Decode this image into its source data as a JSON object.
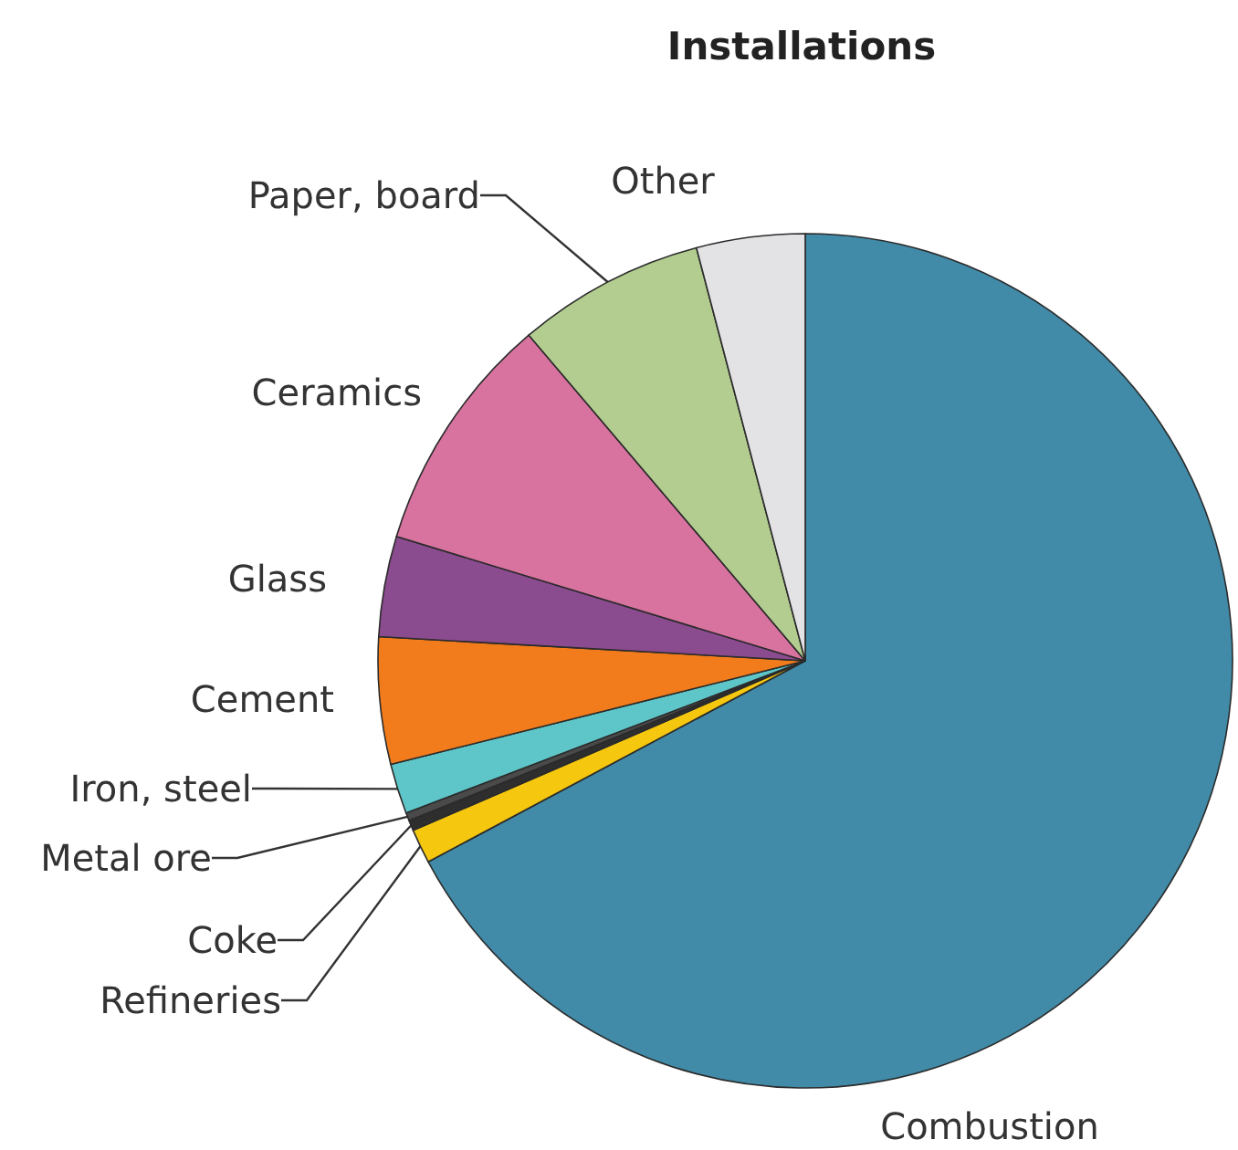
{
  "chart_data": {
    "type": "pie",
    "title": "Installations",
    "categories": [
      "Combustion",
      "Refineries",
      "Coke",
      "Metal ore",
      "Iron, steel",
      "Cement",
      "Glass",
      "Ceramics",
      "Paper, board",
      "Other"
    ],
    "values": [
      67.2,
      1.3,
      0.4,
      0.3,
      1.9,
      4.8,
      3.8,
      9.1,
      7.1,
      4.1
    ],
    "colors": [
      "#418ba8",
      "#f5c80f",
      "#2e2e2e",
      "#4a4a4a",
      "#5ec6c9",
      "#f27c1c",
      "#8b4b8f",
      "#d8739f",
      "#b2cd8f",
      "#e3e3e6"
    ]
  }
}
